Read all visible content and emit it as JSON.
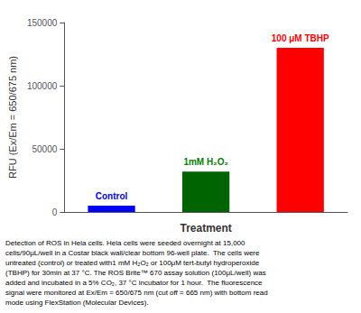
{
  "chart_data": {
    "type": "bar",
    "categories": [
      "Control",
      "1mM H₂O₂",
      "100 μM TBHP"
    ],
    "values": [
      5000,
      32000,
      130000
    ],
    "colors": [
      "#0000FF",
      "#006400",
      "#FF0000"
    ],
    "annotations": [
      {
        "text": "Control",
        "category": "Control",
        "color": "#0000FF"
      },
      {
        "text": "1mM H₂O₂",
        "category": "1mM H₂O₂",
        "color": "#008000"
      },
      {
        "text": "100 μM TBHP",
        "category": "100 μM TBHP",
        "color": "#FF0000"
      }
    ],
    "ylabel": "RFU (Ex/Em = 650/675 nm)",
    "xlabel": "Treatment",
    "ylim": [
      0,
      150000
    ],
    "yticks": [
      0,
      50000,
      100000,
      150000
    ],
    "tick_labels": "y",
    "grid": false,
    "caption": [
      "Detection of ROS in Hela cells. Hela cells were seeded overnight at 15,000",
      "cells/90μL/well in a Costar black wall/clear bottom 96-well plate.  The cells were",
      "untreated (control) or treated with1 mM H₂O₂ or 100μM tert-butyl hydroperoxide",
      "(TBHP) for 30min at 37 °C. The ROS Brite™ 670 assay solution (100μL/well) was",
      "added and incubated in a 5% CO₂, 37 °C incubator for 1 hour.  The fluorescence",
      "signal were monitored at Ex/Em = 650/675 nm (cut off = 665 nm) with bottom read",
      "mode using FlexStation (Molecular Devices)."
    ]
  }
}
